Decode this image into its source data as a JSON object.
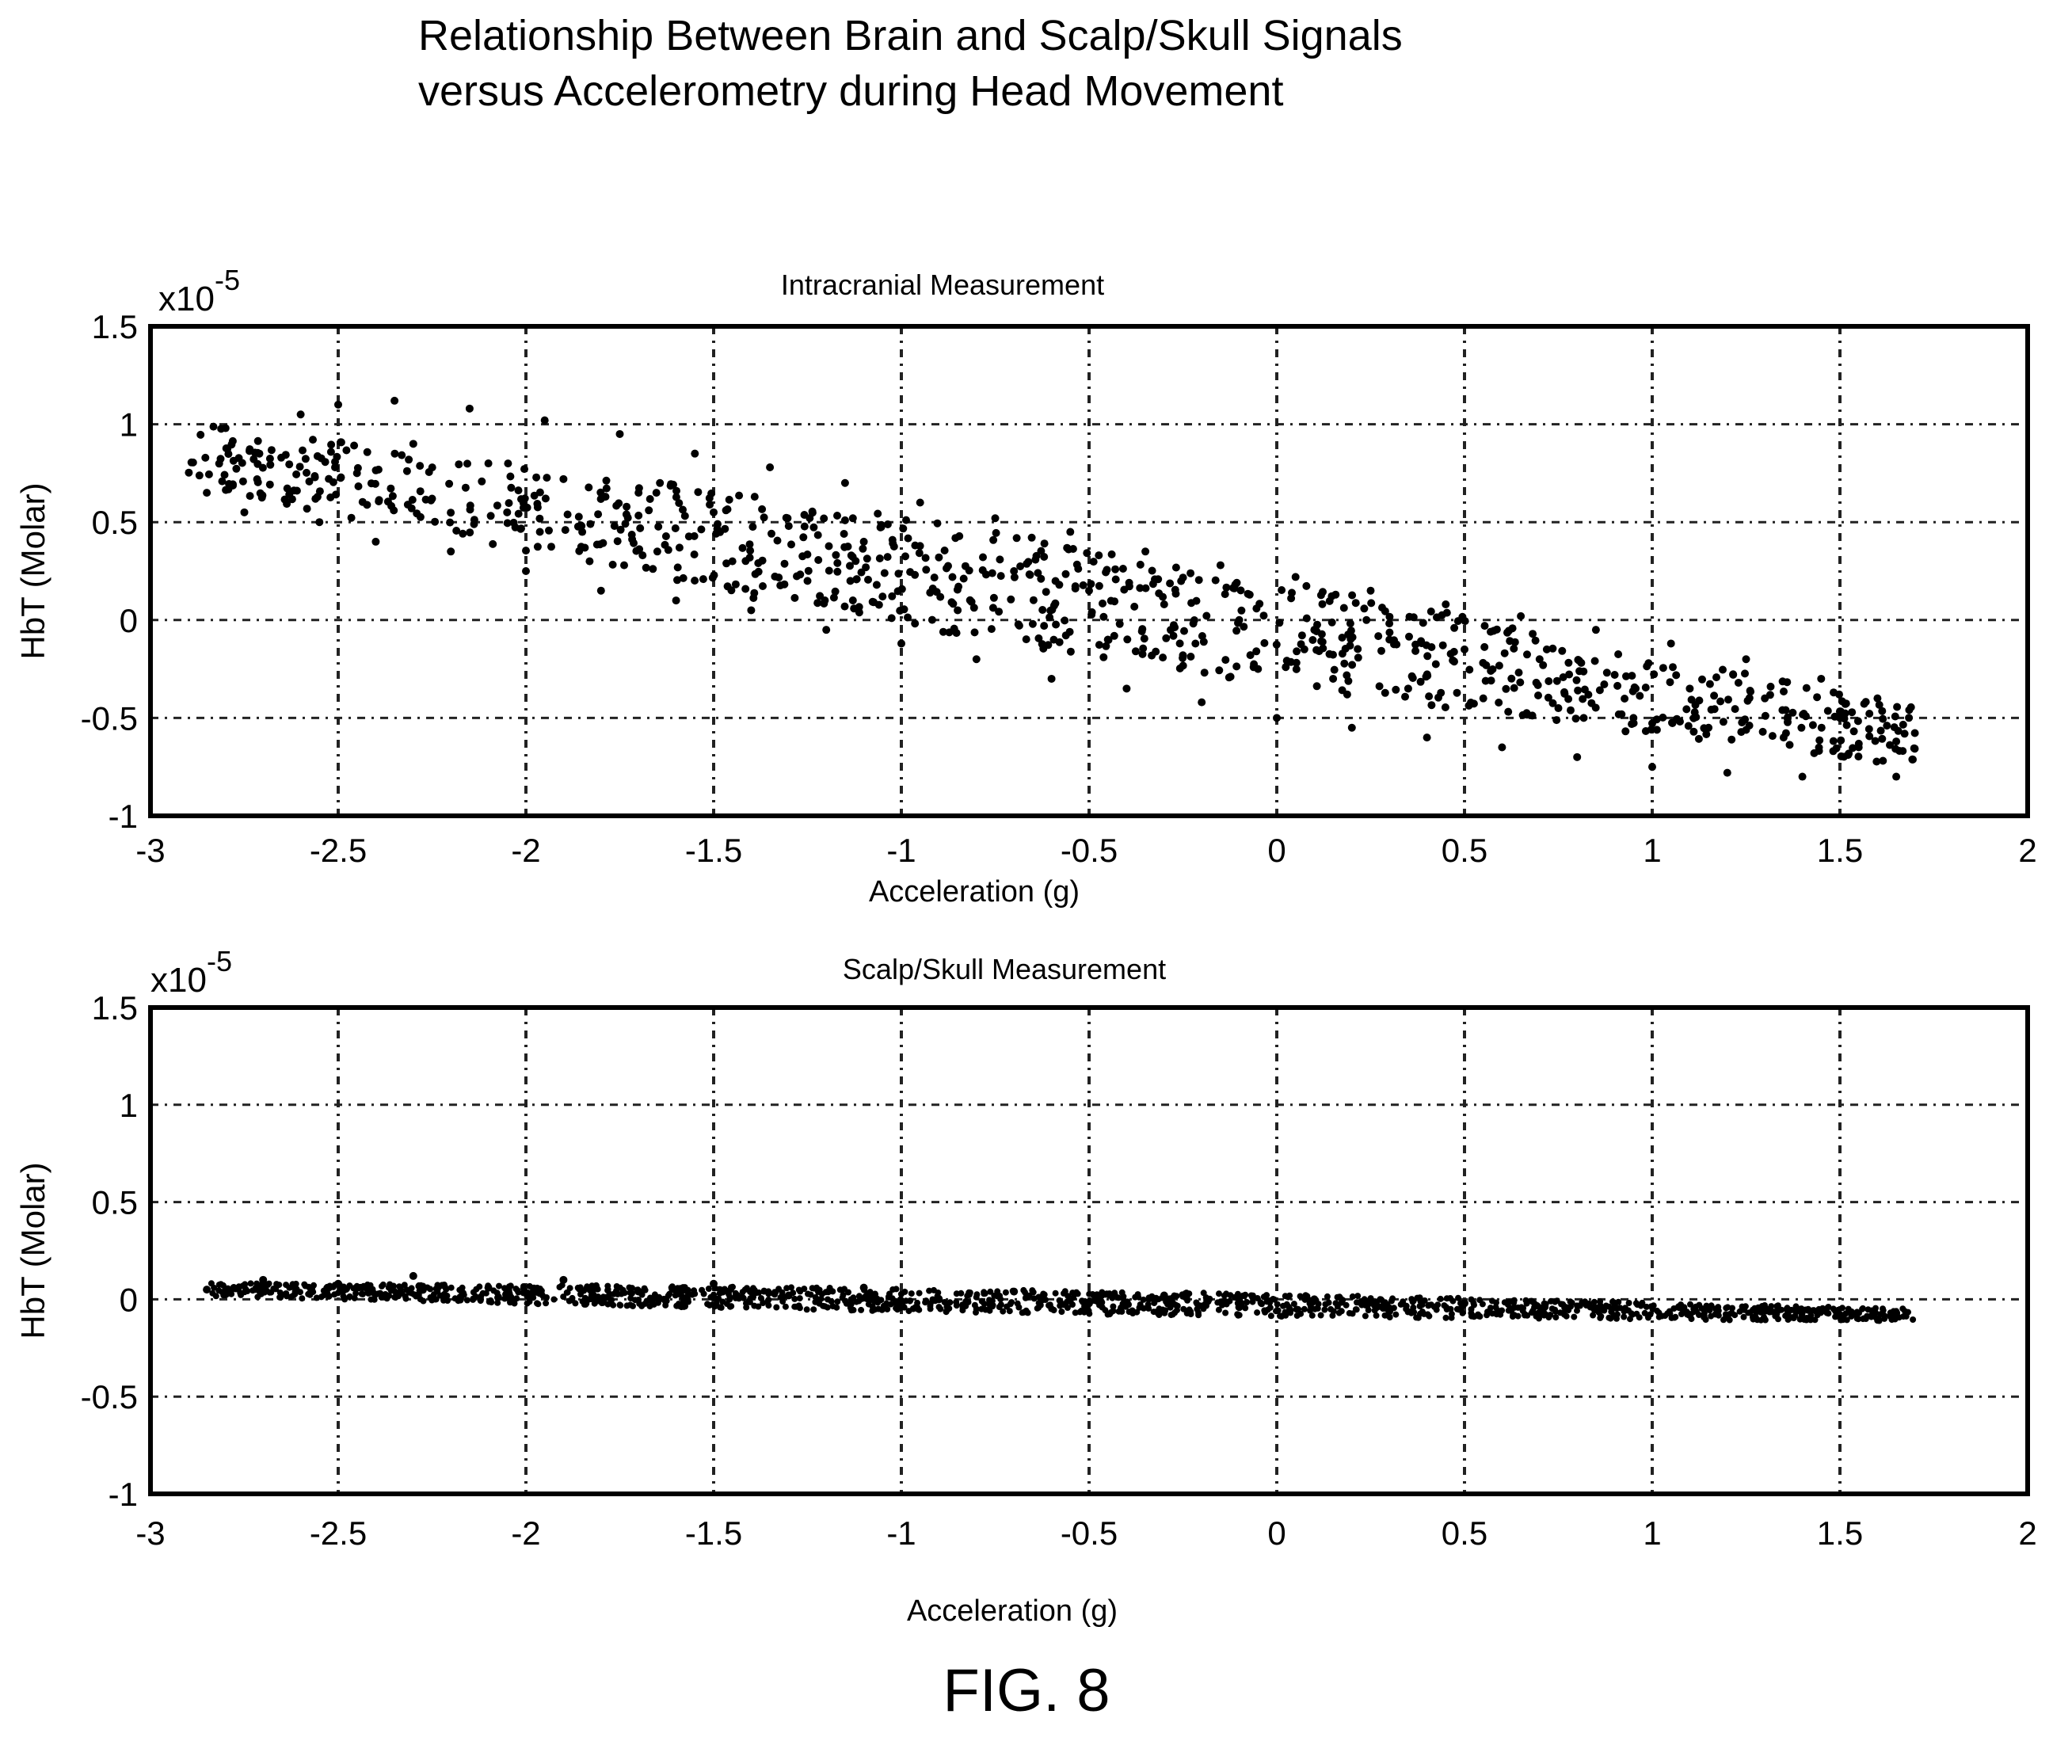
{
  "figure": {
    "title_line1": "Relationship Between Brain and Scalp/Skull Signals",
    "title_line2": "versus Accelerometry during Head Movement",
    "label": "FIG. 8"
  },
  "chart_data": [
    {
      "type": "scatter",
      "title": "Intracranial Measurement",
      "xlabel": "Acceleration (g)",
      "ylabel": "HbT (Molar)",
      "y_multiplier_label": "x10",
      "y_multiplier_exponent": "-5",
      "xlim": [
        -3,
        2
      ],
      "ylim": [
        -1,
        1.5
      ],
      "xticks": [
        -3,
        -2.5,
        -2,
        -1.5,
        -1,
        -0.5,
        0,
        0.5,
        1,
        1.5,
        2
      ],
      "yticks": [
        -1,
        -0.5,
        0,
        0.5,
        1,
        1.5
      ],
      "grid": true,
      "trend": {
        "x_start": -2.9,
        "x_end": 1.7,
        "y_at_start": 0.85,
        "y_at_end": -0.6
      },
      "spread": 0.28,
      "points": [
        [
          -2.85,
          0.65
        ],
        [
          -2.8,
          0.98
        ],
        [
          -2.75,
          0.55
        ],
        [
          -2.6,
          1.05
        ],
        [
          -2.55,
          0.5
        ],
        [
          -2.5,
          1.1
        ],
        [
          -2.45,
          0.75
        ],
        [
          -2.4,
          0.4
        ],
        [
          -2.35,
          1.12
        ],
        [
          -2.3,
          0.9
        ],
        [
          -2.25,
          0.62
        ],
        [
          -2.2,
          0.35
        ],
        [
          -2.15,
          1.08
        ],
        [
          -2.1,
          0.8
        ],
        [
          -2.05,
          0.55
        ],
        [
          -2.0,
          0.25
        ],
        [
          -1.95,
          1.02
        ],
        [
          -1.9,
          0.72
        ],
        [
          -1.85,
          0.45
        ],
        [
          -1.8,
          0.15
        ],
        [
          -1.75,
          0.95
        ],
        [
          -1.7,
          0.65
        ],
        [
          -1.65,
          0.35
        ],
        [
          -1.6,
          0.1
        ],
        [
          -1.55,
          0.85
        ],
        [
          -1.5,
          0.55
        ],
        [
          -1.45,
          0.3
        ],
        [
          -1.4,
          0.05
        ],
        [
          -1.35,
          0.78
        ],
        [
          -1.3,
          0.48
        ],
        [
          -1.25,
          0.2
        ],
        [
          -1.2,
          -0.05
        ],
        [
          -1.15,
          0.7
        ],
        [
          -1.1,
          0.4
        ],
        [
          -1.05,
          0.12
        ],
        [
          -1.0,
          -0.12
        ],
        [
          -0.95,
          0.6
        ],
        [
          -0.9,
          0.32
        ],
        [
          -0.85,
          0.05
        ],
        [
          -0.8,
          -0.2
        ],
        [
          -0.75,
          0.52
        ],
        [
          -0.7,
          0.25
        ],
        [
          -0.65,
          -0.02
        ],
        [
          -0.6,
          -0.3
        ],
        [
          -0.55,
          0.45
        ],
        [
          -0.5,
          0.15
        ],
        [
          -0.45,
          -0.1
        ],
        [
          -0.4,
          -0.35
        ],
        [
          -0.35,
          0.35
        ],
        [
          -0.3,
          0.08
        ],
        [
          -0.25,
          -0.18
        ],
        [
          -0.2,
          -0.42
        ],
        [
          -0.15,
          0.28
        ],
        [
          -0.1,
          0.0
        ],
        [
          -0.05,
          -0.25
        ],
        [
          0.0,
          -0.5
        ],
        [
          0.05,
          0.22
        ],
        [
          0.1,
          -0.05
        ],
        [
          0.15,
          -0.3
        ],
        [
          0.2,
          -0.55
        ],
        [
          0.25,
          0.15
        ],
        [
          0.3,
          -0.1
        ],
        [
          0.35,
          -0.35
        ],
        [
          0.4,
          -0.6
        ],
        [
          0.45,
          0.08
        ],
        [
          0.5,
          -0.15
        ],
        [
          0.55,
          -0.4
        ],
        [
          0.6,
          -0.65
        ],
        [
          0.65,
          0.02
        ],
        [
          0.7,
          -0.2
        ],
        [
          0.75,
          -0.45
        ],
        [
          0.8,
          -0.7
        ],
        [
          0.85,
          -0.05
        ],
        [
          0.9,
          -0.28
        ],
        [
          0.95,
          -0.5
        ],
        [
          1.0,
          -0.75
        ],
        [
          1.05,
          -0.12
        ],
        [
          1.1,
          -0.35
        ],
        [
          1.15,
          -0.55
        ],
        [
          1.2,
          -0.78
        ],
        [
          1.25,
          -0.2
        ],
        [
          1.3,
          -0.4
        ],
        [
          1.35,
          -0.6
        ],
        [
          1.4,
          -0.8
        ],
        [
          1.45,
          -0.3
        ],
        [
          1.5,
          -0.5
        ],
        [
          1.55,
          -0.65
        ],
        [
          1.6,
          -0.4
        ],
        [
          1.65,
          -0.62
        ],
        [
          1.65,
          -0.8
        ]
      ]
    },
    {
      "type": "scatter",
      "title": "Scalp/Skull Measurement",
      "xlabel": "Acceleration (g)",
      "ylabel": "HbT (Molar)",
      "y_multiplier_label": "x10",
      "y_multiplier_exponent": "-5",
      "xlim": [
        -3,
        2
      ],
      "ylim": [
        -1,
        1.5
      ],
      "xticks": [
        -3,
        -2.5,
        -2,
        -1.5,
        -1,
        -0.5,
        0,
        0.5,
        1,
        1.5,
        2
      ],
      "yticks": [
        -1,
        -0.5,
        0,
        0.5,
        1,
        1.5
      ],
      "grid": true,
      "trend": {
        "x_start": -2.85,
        "x_end": 1.7,
        "y_at_start": 0.05,
        "y_at_end": -0.08
      },
      "spread": 0.06,
      "points": [
        [
          -2.85,
          0.05
        ],
        [
          -2.7,
          0.1
        ],
        [
          -2.5,
          0.08
        ],
        [
          -2.3,
          0.12
        ],
        [
          -2.1,
          0.06
        ],
        [
          -1.9,
          0.1
        ],
        [
          -1.7,
          0.04
        ],
        [
          -1.5,
          0.08
        ],
        [
          -1.3,
          0.02
        ],
        [
          -1.1,
          0.06
        ],
        [
          -0.9,
          0.0
        ],
        [
          -0.7,
          0.04
        ],
        [
          -0.5,
          -0.02
        ],
        [
          -0.3,
          0.02
        ],
        [
          -0.1,
          -0.04
        ],
        [
          0.1,
          0.0
        ],
        [
          0.3,
          -0.06
        ],
        [
          0.5,
          -0.02
        ],
        [
          0.7,
          -0.07
        ],
        [
          0.9,
          -0.04
        ],
        [
          1.1,
          -0.08
        ],
        [
          1.3,
          -0.05
        ],
        [
          1.5,
          -0.08
        ],
        [
          1.65,
          -0.07
        ]
      ]
    }
  ]
}
